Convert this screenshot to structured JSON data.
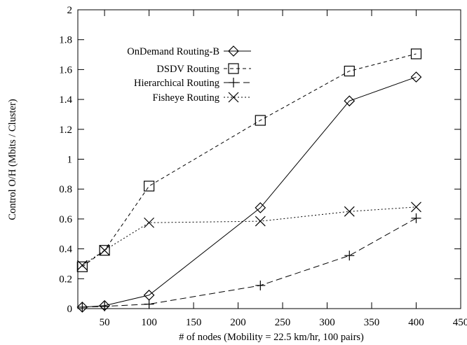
{
  "chart_data": {
    "type": "line",
    "title": "",
    "xlabel": "# of nodes (Mobility = 22.5 km/hr, 100 pairs)",
    "ylabel": "Control O/H (Mbits / Cluster)",
    "xlim": [
      20,
      450
    ],
    "ylim": [
      0,
      2
    ],
    "xticks": [
      50,
      100,
      150,
      200,
      250,
      300,
      350,
      400,
      450
    ],
    "yticks": [
      0,
      0.2,
      0.4,
      0.6,
      0.8,
      1,
      1.2,
      1.4,
      1.6,
      1.8,
      2
    ],
    "xtick_labels": [
      "50",
      "100",
      "150",
      "200",
      "250",
      "300",
      "350",
      "400",
      "450"
    ],
    "ytick_labels": [
      "0",
      "0.2",
      "0.4",
      "0.6",
      "0.8",
      "1",
      "1.2",
      "1.4",
      "1.6",
      "1.8",
      "2"
    ],
    "grid": false,
    "legend_position": "top-left",
    "series": [
      {
        "name": "OnDemand Routing-B",
        "marker": "diamond",
        "dash": "solid",
        "x": [
          25,
          50,
          100,
          225,
          325,
          400
        ],
        "y": [
          0.01,
          0.02,
          0.09,
          0.675,
          1.39,
          1.55
        ]
      },
      {
        "name": "DSDV Routing",
        "marker": "square",
        "dash": "dashed",
        "x": [
          25,
          50,
          100,
          225,
          325,
          400
        ],
        "y": [
          0.28,
          0.39,
          0.82,
          1.26,
          1.59,
          1.705
        ]
      },
      {
        "name": "Hierarchical Routing",
        "marker": "plus",
        "dash": "long-dashed",
        "x": [
          25,
          50,
          100,
          225,
          325,
          400
        ],
        "y": [
          0.01,
          0.015,
          0.03,
          0.155,
          0.355,
          0.605
        ]
      },
      {
        "name": "Fisheye Routing",
        "marker": "cross",
        "dash": "dotted",
        "x": [
          25,
          50,
          100,
          225,
          325,
          400
        ],
        "y": [
          0.29,
          0.39,
          0.575,
          0.585,
          0.65,
          0.68
        ]
      }
    ]
  }
}
